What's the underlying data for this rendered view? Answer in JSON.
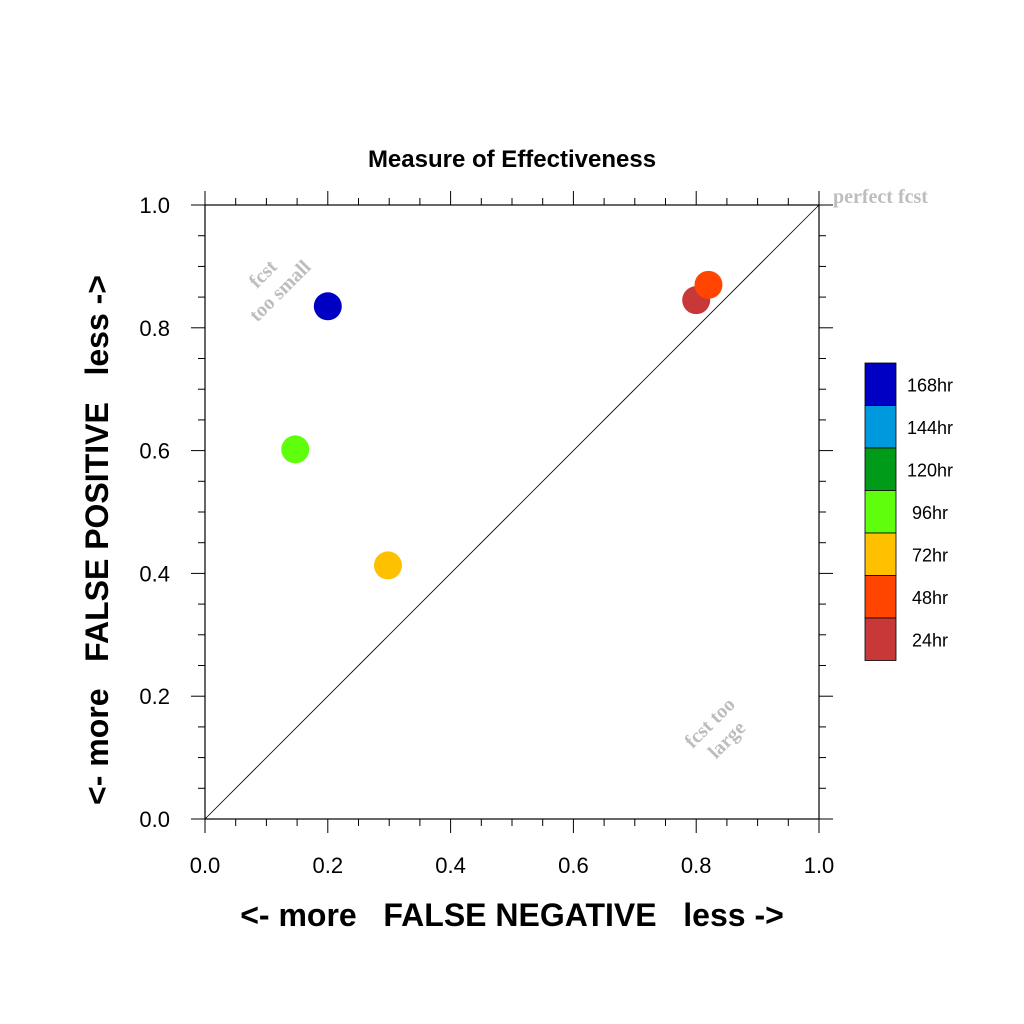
{
  "chart_data": {
    "type": "scatter",
    "title": "Measure of Effectiveness",
    "xlabel": "<- more   FALSE NEGATIVE   less ->",
    "ylabel": "<- more   FALSE POSITIVE   less ->",
    "xlim": [
      0.0,
      1.0
    ],
    "ylim": [
      0.0,
      1.0
    ],
    "xticks": [
      "0.0",
      "0.2",
      "0.4",
      "0.6",
      "0.8",
      "1.0"
    ],
    "yticks": [
      "0.0",
      "0.2",
      "0.4",
      "0.6",
      "0.8",
      "1.0"
    ],
    "grid": false,
    "legend_position": "right",
    "reference_line": "diagonal y = x",
    "annotations": {
      "perfect": "perfect fcst",
      "small_line1": "fcst",
      "small_line2": "too small",
      "large_line1": "fcst too",
      "large_line2": "large"
    },
    "legend": [
      {
        "label": "168hr",
        "color": "#0000c4"
      },
      {
        "label": "144hr",
        "color": "#0099dd"
      },
      {
        "label": "120hr",
        "color": "#009b18"
      },
      {
        "label": "96hr",
        "color": "#5efe0c"
      },
      {
        "label": "72hr",
        "color": "#ffc000"
      },
      {
        "label": "48hr",
        "color": "#ff4500"
      },
      {
        "label": "24hr",
        "color": "#c83838"
      }
    ],
    "points": [
      {
        "series": "168hr",
        "x": 0.2,
        "y": 0.835,
        "color": "#0000c4"
      },
      {
        "series": "96hr",
        "x": 0.147,
        "y": 0.602,
        "color": "#5efe0c"
      },
      {
        "series": "72hr",
        "x": 0.298,
        "y": 0.413,
        "color": "#ffc000"
      },
      {
        "series": "24hr",
        "x": 0.8,
        "y": 0.845,
        "color": "#c83838"
      },
      {
        "series": "48hr",
        "x": 0.82,
        "y": 0.87,
        "color": "#ff4500"
      }
    ]
  }
}
